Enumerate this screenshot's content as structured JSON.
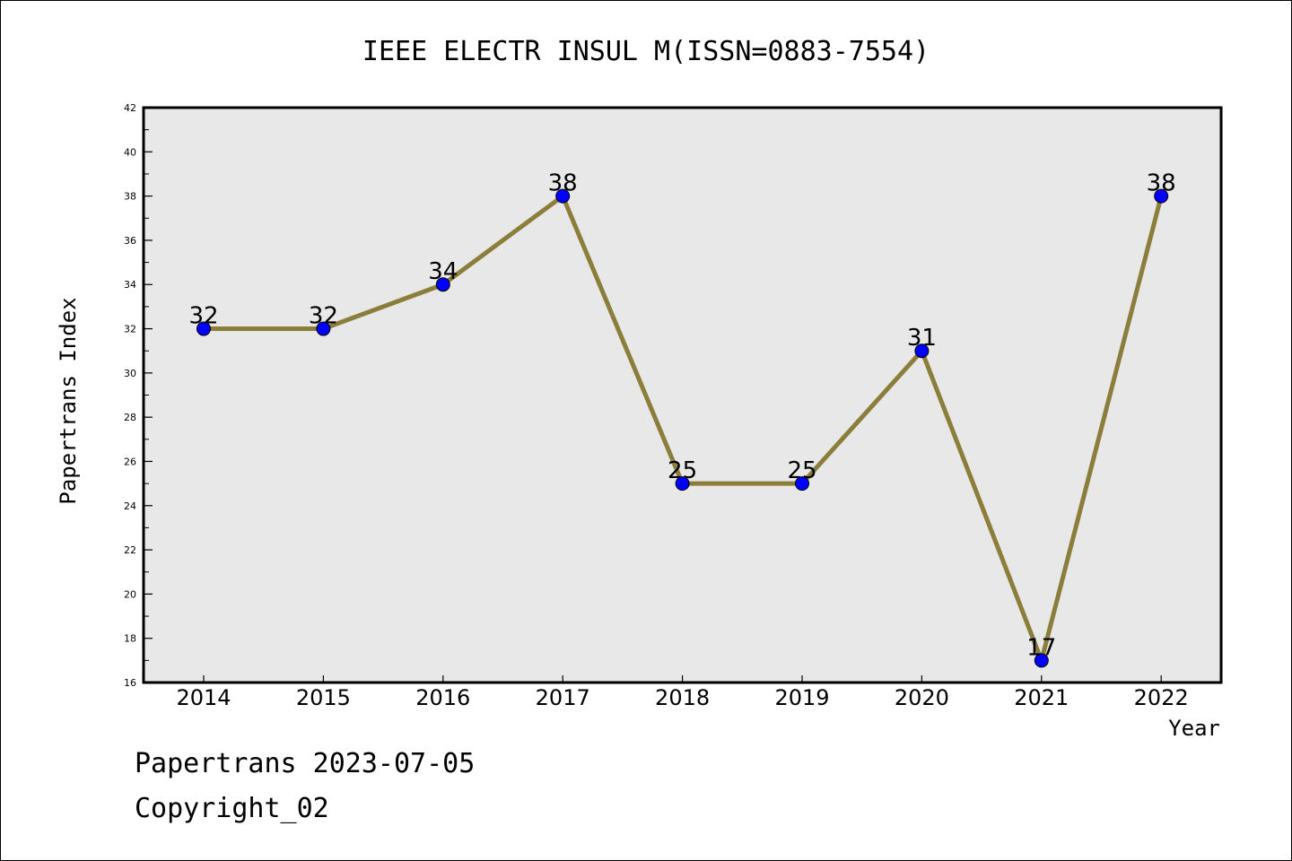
{
  "chart_data": {
    "type": "line",
    "title": "IEEE ELECTR INSUL M(ISSN=0883-7554)",
    "xlabel": "Year",
    "ylabel": "Papertrans Index",
    "categories": [
      "2014",
      "2015",
      "2016",
      "2017",
      "2018",
      "2019",
      "2020",
      "2021",
      "2022"
    ],
    "series": [
      {
        "values": [
          32,
          32,
          34,
          38,
          25,
          25,
          31,
          17,
          38
        ],
        "data_labels": [
          "32",
          "32",
          "34",
          "38",
          "25",
          "25",
          "31",
          "17",
          "38"
        ]
      }
    ],
    "ylim": [
      16,
      42
    ],
    "yticks": [
      "16",
      "18",
      "20",
      "22",
      "24",
      "26",
      "28",
      "30",
      "32",
      "34",
      "36",
      "38",
      "40",
      "42"
    ],
    "grid": false,
    "legend": "none",
    "colors": {
      "line": "#8B7D3A",
      "marker": "#0000FF",
      "plot_background": "#E8E8E8"
    }
  },
  "footer": {
    "line1": "Papertrans 2023-07-05",
    "line2": "Copyright_02"
  }
}
